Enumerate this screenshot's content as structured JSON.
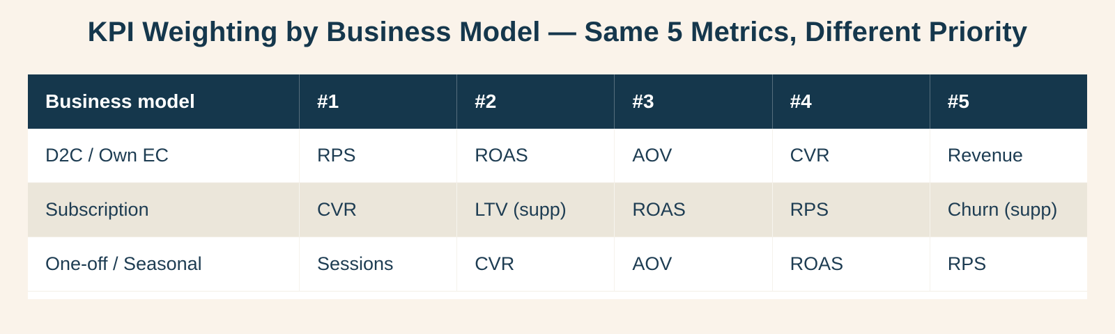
{
  "title": "KPI Weighting by Business Model — Same 5 Metrics, Different Priority",
  "table": {
    "columns": [
      "Business model",
      "#1",
      "#2",
      "#3",
      "#4",
      "#5"
    ],
    "rows": [
      {
        "model": "D2C / Own EC",
        "metrics": [
          "RPS",
          "ROAS",
          "AOV",
          "CVR",
          "Revenue"
        ]
      },
      {
        "model": "Subscription",
        "metrics": [
          "CVR",
          "LTV (supp)",
          "ROAS",
          "RPS",
          "Churn (supp)"
        ]
      },
      {
        "model": "One-off / Seasonal",
        "metrics": [
          "Sessions",
          "CVR",
          "AOV",
          "ROAS",
          "RPS"
        ]
      }
    ]
  },
  "colors": {
    "page_background": "#faf3ea",
    "header_background": "#15374c",
    "header_text": "#ffffff",
    "body_text": "#1d3c52",
    "alt_row_background": "#ebe6da",
    "row_background": "#ffffff",
    "title_text": "#15374c"
  },
  "chart_data": {
    "type": "table",
    "title": "KPI Weighting by Business Model — Same 5 Metrics, Different Priority",
    "columns": [
      "Business model",
      "#1",
      "#2",
      "#3",
      "#4",
      "#5"
    ],
    "rows": [
      [
        "D2C / Own EC",
        "RPS",
        "ROAS",
        "AOV",
        "CVR",
        "Revenue"
      ],
      [
        "Subscription",
        "CVR",
        "LTV (supp)",
        "ROAS",
        "RPS",
        "Churn (supp)"
      ],
      [
        "One-off / Seasonal",
        "Sessions",
        "CVR",
        "AOV",
        "ROAS",
        "RPS"
      ]
    ],
    "layout_hints": {
      "header_style": "dark navy band, white bold text",
      "zebra_striping": "row 2 beige (#ebe6da), rows 1 and 3 white",
      "alignment": "left-aligned cells"
    }
  }
}
